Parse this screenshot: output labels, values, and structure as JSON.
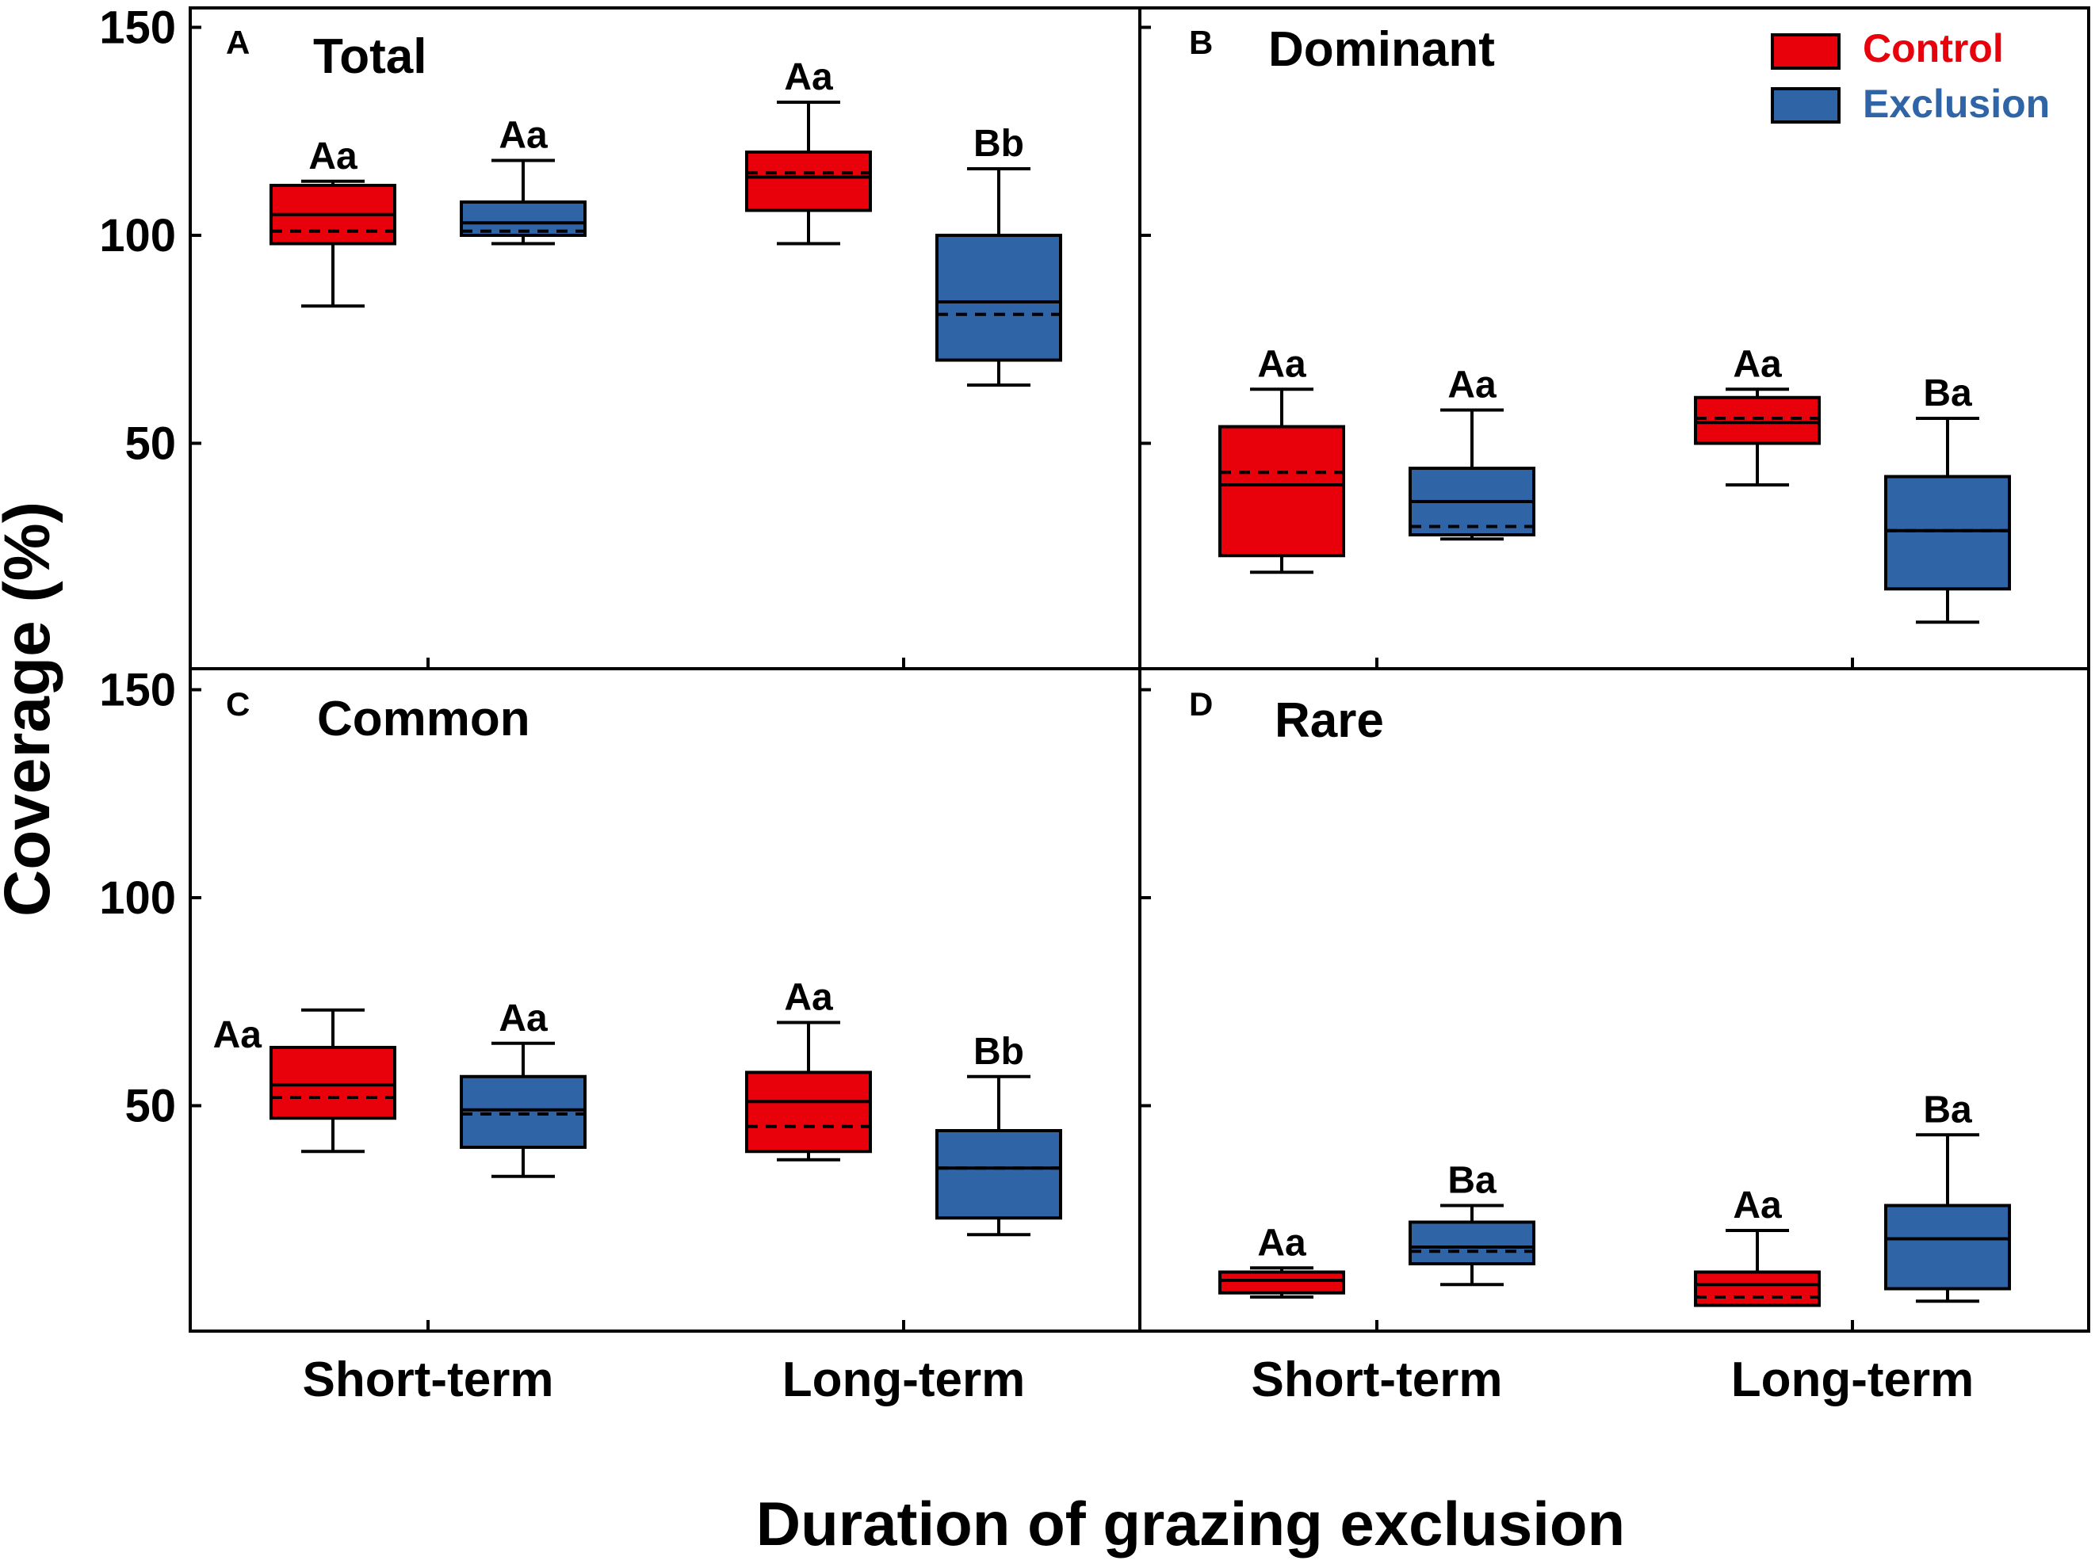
{
  "figure": {
    "ylabel": "Coverage (%)",
    "xlabel": "Duration of grazing exclusion",
    "legend": {
      "position": "top-right",
      "items": [
        {
          "name": "Control",
          "color": "#e8000b",
          "text_color": "#e8000b"
        },
        {
          "name": "Exclusion",
          "color": "#2f64a7",
          "text_color": "#2f64a7"
        }
      ]
    }
  },
  "chart_data": [
    {
      "panel": "A",
      "title": "Total",
      "type": "box",
      "categories": [
        "Short-term",
        "Long-term"
      ],
      "ylim": [
        0,
        160
      ],
      "yticks": [
        50,
        100,
        150
      ],
      "series": [
        {
          "name": "Control",
          "boxes": [
            {
              "min": 83,
              "q1": 98,
              "median": 105,
              "mean": 101,
              "q3": 112,
              "max": 113,
              "label": "Aa"
            },
            {
              "min": 98,
              "q1": 106,
              "median": 114,
              "mean": 115,
              "q3": 120,
              "max": 132,
              "label": "Aa"
            }
          ]
        },
        {
          "name": "Exclusion",
          "boxes": [
            {
              "min": 98,
              "q1": 100,
              "median": 103,
              "mean": 101,
              "q3": 108,
              "max": 118,
              "label": "Aa"
            },
            {
              "min": 64,
              "q1": 70,
              "median": 84,
              "mean": 81,
              "q3": 100,
              "max": 116,
              "label": "Bb"
            }
          ]
        }
      ]
    },
    {
      "panel": "B",
      "title": "Dominant",
      "type": "box",
      "categories": [
        "Short-term",
        "Long-term"
      ],
      "ylim": [
        0,
        160
      ],
      "yticks": [
        50,
        100,
        150
      ],
      "series": [
        {
          "name": "Control",
          "boxes": [
            {
              "min": 19,
              "q1": 23,
              "median": 40,
              "mean": 43,
              "q3": 54,
              "max": 63,
              "label": "Aa"
            },
            {
              "min": 40,
              "q1": 50,
              "median": 55,
              "mean": 56,
              "q3": 61,
              "max": 63,
              "label": "Aa"
            }
          ]
        },
        {
          "name": "Exclusion",
          "boxes": [
            {
              "min": 27,
              "q1": 28,
              "median": 36,
              "mean": 30,
              "q3": 44,
              "max": 58,
              "label": "Aa"
            },
            {
              "min": 7,
              "q1": 15,
              "median": 29,
              "mean": 29,
              "q3": 42,
              "max": 56,
              "label": "Ba"
            }
          ]
        }
      ]
    },
    {
      "panel": "C",
      "title": "Common",
      "type": "box",
      "categories": [
        "Short-term",
        "Long-term"
      ],
      "ylim": [
        0,
        160
      ],
      "yticks": [
        50,
        100,
        150
      ],
      "series": [
        {
          "name": "Control",
          "boxes": [
            {
              "min": 39,
              "q1": 47,
              "median": 55,
              "mean": 52,
              "q3": 64,
              "max": 73,
              "label": "Aa"
            },
            {
              "min": 37,
              "q1": 39,
              "median": 51,
              "mean": 45,
              "q3": 58,
              "max": 70,
              "label": "Aa"
            }
          ]
        },
        {
          "name": "Exclusion",
          "boxes": [
            {
              "min": 33,
              "q1": 40,
              "median": 49,
              "mean": 48,
              "q3": 57,
              "max": 65,
              "label": "Aa"
            },
            {
              "min": 19,
              "q1": 23,
              "median": 35,
              "mean": 35,
              "q3": 44,
              "max": 57,
              "label": "Bb"
            }
          ]
        }
      ]
    },
    {
      "panel": "D",
      "title": "Rare",
      "type": "box",
      "categories": [
        "Short-term",
        "Long-term"
      ],
      "ylim": [
        0,
        160
      ],
      "yticks": [
        50,
        100,
        150
      ],
      "series": [
        {
          "name": "Control",
          "boxes": [
            {
              "min": 4,
              "q1": 5,
              "median": 8,
              "mean": 8,
              "q3": 10,
              "max": 11,
              "label": "Aa"
            },
            {
              "min": 2,
              "q1": 2,
              "median": 7,
              "mean": 4,
              "q3": 10,
              "max": 20,
              "label": "Aa"
            }
          ]
        },
        {
          "name": "Exclusion",
          "boxes": [
            {
              "min": 7,
              "q1": 12,
              "median": 16,
              "mean": 15,
              "q3": 22,
              "max": 26,
              "label": "Ba"
            },
            {
              "min": 3,
              "q1": 6,
              "median": 18,
              "mean": 18,
              "q3": 26,
              "max": 43,
              "label": "Ba"
            }
          ]
        }
      ]
    }
  ]
}
